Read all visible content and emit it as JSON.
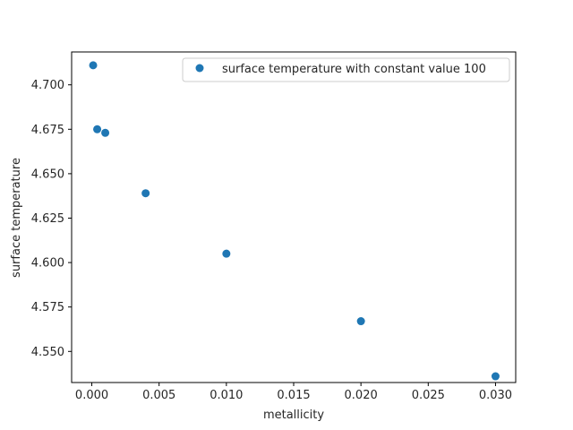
{
  "chart_data": {
    "type": "scatter",
    "title": "",
    "xlabel": "metallicity",
    "ylabel": "surface temperature",
    "xlim": [
      -0.0015,
      0.0315
    ],
    "ylim": [
      4.5325,
      4.7185
    ],
    "x_ticks": [
      0.0,
      0.005,
      0.01,
      0.015,
      0.02,
      0.025,
      0.03
    ],
    "x_tick_labels": [
      "0.000",
      "0.005",
      "0.010",
      "0.015",
      "0.020",
      "0.025",
      "0.030"
    ],
    "y_ticks": [
      4.55,
      4.575,
      4.6,
      4.625,
      4.65,
      4.675,
      4.7
    ],
    "y_tick_labels": [
      "4.550",
      "4.575",
      "4.600",
      "4.625",
      "4.650",
      "4.675",
      "4.700"
    ],
    "grid": false,
    "legend_position": "top-right",
    "series": [
      {
        "name": "surface temperature with constant value 100",
        "color": "#1f77b4",
        "x": [
          0.0001,
          0.0004,
          0.001,
          0.004,
          0.01,
          0.02,
          0.03
        ],
        "y": [
          4.711,
          4.675,
          4.673,
          4.639,
          4.605,
          4.567,
          4.536
        ]
      }
    ]
  }
}
